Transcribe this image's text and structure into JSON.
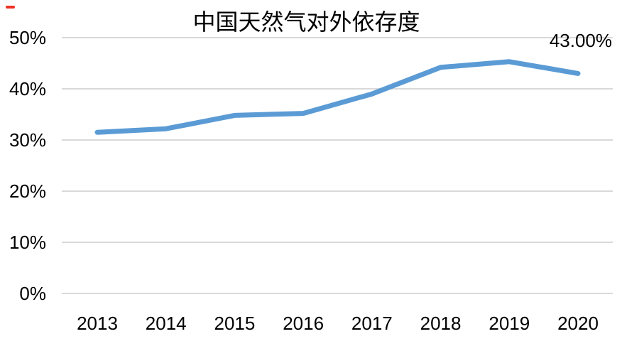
{
  "page": {
    "background_color": "#ffffff"
  },
  "decorations": {
    "red_mark_color": "#ee3124"
  },
  "chart_data": {
    "type": "line",
    "title": "中国天然气对外依存度",
    "categories": [
      "2013",
      "2014",
      "2015",
      "2016",
      "2017",
      "2018",
      "2019",
      "2020"
    ],
    "values": [
      31.5,
      32.2,
      34.8,
      35.2,
      39.0,
      44.2,
      45.3,
      43.0
    ],
    "y_tick_labels": [
      "0%",
      "10%",
      "20%",
      "30%",
      "40%",
      "50%"
    ],
    "ylim": [
      0,
      50
    ],
    "y_tick_step": 10,
    "xlabel": "",
    "ylabel": "",
    "grid": "horizontal-only",
    "legend_position": "none",
    "annotation": {
      "text": "43.00%",
      "target_category": "2020",
      "target_value": 43.0
    },
    "line_color": "#5B9BD5",
    "line_width": 7,
    "gridline_color": "#D9D9D9",
    "text_color": "#000000"
  }
}
